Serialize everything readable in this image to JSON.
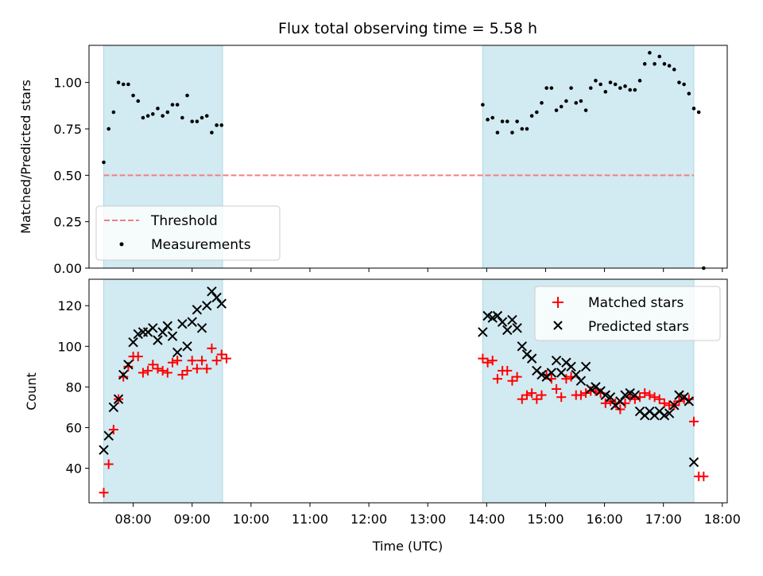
{
  "chart_data": [
    {
      "type": "scatter",
      "title": "Flux total observing time = 5.58 h",
      "ylabel": "Matched/Predicted stars",
      "xlim": [
        "07:15",
        "18:05"
      ],
      "ylim": [
        0,
        1.2
      ],
      "yticks": [
        "0.00",
        "0.25",
        "0.50",
        "0.75",
        "1.00"
      ],
      "grid": false,
      "legend_position": "lower-left",
      "shaded_intervals": [
        [
          "07:30",
          "09:31"
        ],
        [
          "13:56",
          "17:31"
        ]
      ],
      "shade_color": "#add8e6",
      "threshold": {
        "name": "Threshold",
        "value": 0.5,
        "x_range": [
          "07:30",
          "17:31"
        ],
        "color": "#f08080",
        "style": "dashed"
      },
      "series": [
        {
          "name": "Measurements",
          "marker": "dot",
          "color": "#000000",
          "points": [
            [
              "07:30",
              0.57
            ],
            [
              "07:35",
              0.75
            ],
            [
              "07:40",
              0.84
            ],
            [
              "07:45",
              1.0
            ],
            [
              "07:50",
              0.99
            ],
            [
              "07:55",
              0.99
            ],
            [
              "08:00",
              0.93
            ],
            [
              "08:05",
              0.9
            ],
            [
              "08:10",
              0.81
            ],
            [
              "08:15",
              0.82
            ],
            [
              "08:20",
              0.83
            ],
            [
              "08:25",
              0.86
            ],
            [
              "08:30",
              0.82
            ],
            [
              "08:35",
              0.84
            ],
            [
              "08:40",
              0.88
            ],
            [
              "08:45",
              0.88
            ],
            [
              "08:50",
              0.81
            ],
            [
              "08:55",
              0.93
            ],
            [
              "09:00",
              0.79
            ],
            [
              "09:05",
              0.79
            ],
            [
              "09:10",
              0.81
            ],
            [
              "09:15",
              0.82
            ],
            [
              "09:20",
              0.73
            ],
            [
              "09:25",
              0.77
            ],
            [
              "09:30",
              0.77
            ],
            [
              "13:56",
              0.88
            ],
            [
              "14:01",
              0.8
            ],
            [
              "14:06",
              0.81
            ],
            [
              "14:11",
              0.73
            ],
            [
              "14:16",
              0.79
            ],
            [
              "14:21",
              0.79
            ],
            [
              "14:26",
              0.73
            ],
            [
              "14:31",
              0.79
            ],
            [
              "14:36",
              0.75
            ],
            [
              "14:41",
              0.75
            ],
            [
              "14:46",
              0.82
            ],
            [
              "14:51",
              0.84
            ],
            [
              "14:56",
              0.89
            ],
            [
              "15:01",
              0.97
            ],
            [
              "15:06",
              0.97
            ],
            [
              "15:11",
              0.85
            ],
            [
              "15:16",
              0.87
            ],
            [
              "15:21",
              0.9
            ],
            [
              "15:26",
              0.97
            ],
            [
              "15:31",
              0.89
            ],
            [
              "15:36",
              0.9
            ],
            [
              "15:41",
              0.85
            ],
            [
              "15:46",
              0.97
            ],
            [
              "15:51",
              1.01
            ],
            [
              "15:56",
              0.99
            ],
            [
              "16:01",
              0.95
            ],
            [
              "16:06",
              1.0
            ],
            [
              "16:11",
              0.99
            ],
            [
              "16:16",
              0.97
            ],
            [
              "16:21",
              0.98
            ],
            [
              "16:26",
              0.96
            ],
            [
              "16:31",
              0.96
            ],
            [
              "16:36",
              1.01
            ],
            [
              "16:41",
              1.1
            ],
            [
              "16:46",
              1.16
            ],
            [
              "16:51",
              1.1
            ],
            [
              "16:56",
              1.14
            ],
            [
              "17:01",
              1.1
            ],
            [
              "17:06",
              1.09
            ],
            [
              "17:11",
              1.07
            ],
            [
              "17:16",
              1.0
            ],
            [
              "17:21",
              0.99
            ],
            [
              "17:26",
              0.94
            ],
            [
              "17:31",
              0.86
            ],
            [
              "17:36",
              0.84
            ],
            [
              "17:41",
              0.0
            ]
          ]
        }
      ]
    },
    {
      "type": "scatter",
      "xlabel": "Time (UTC)",
      "ylabel": "Count",
      "xlim": [
        "07:15",
        "18:05"
      ],
      "ylim": [
        23,
        133
      ],
      "xticks": [
        "08:00",
        "09:00",
        "10:00",
        "11:00",
        "12:00",
        "13:00",
        "14:00",
        "15:00",
        "16:00",
        "17:00",
        "18:00"
      ],
      "yticks": [
        40,
        60,
        80,
        100,
        120
      ],
      "grid": false,
      "legend_position": "upper-right",
      "shaded_intervals": [
        [
          "07:30",
          "09:31"
        ],
        [
          "13:56",
          "17:31"
        ]
      ],
      "shade_color": "#add8e6",
      "series": [
        {
          "name": "Matched stars",
          "marker": "plus",
          "color": "#ff0000",
          "points": [
            [
              "07:30",
              28
            ],
            [
              "07:35",
              42
            ],
            [
              "07:40",
              59
            ],
            [
              "07:45",
              74
            ],
            [
              "07:50",
              85
            ],
            [
              "07:55",
              90
            ],
            [
              "08:00",
              95
            ],
            [
              "08:05",
              95
            ],
            [
              "08:10",
              87
            ],
            [
              "08:15",
              88
            ],
            [
              "08:20",
              91
            ],
            [
              "08:25",
              89
            ],
            [
              "08:30",
              88
            ],
            [
              "08:35",
              87
            ],
            [
              "08:40",
              92
            ],
            [
              "08:45",
              93
            ],
            [
              "08:50",
              86
            ],
            [
              "08:55",
              88
            ],
            [
              "09:00",
              93
            ],
            [
              "09:05",
              89
            ],
            [
              "09:10",
              93
            ],
            [
              "09:15",
              89
            ],
            [
              "09:20",
              99
            ],
            [
              "09:25",
              93
            ],
            [
              "09:30",
              96
            ],
            [
              "09:35",
              94
            ],
            [
              "13:56",
              94
            ],
            [
              "14:01",
              92
            ],
            [
              "14:06",
              93
            ],
            [
              "14:11",
              84
            ],
            [
              "14:16",
              88
            ],
            [
              "14:21",
              88
            ],
            [
              "14:26",
              83
            ],
            [
              "14:31",
              85
            ],
            [
              "14:36",
              74
            ],
            [
              "14:41",
              76
            ],
            [
              "14:46",
              77
            ],
            [
              "14:51",
              74
            ],
            [
              "14:56",
              76
            ],
            [
              "15:01",
              86
            ],
            [
              "15:06",
              84
            ],
            [
              "15:11",
              79
            ],
            [
              "15:16",
              75
            ],
            [
              "15:21",
              84
            ],
            [
              "15:26",
              85
            ],
            [
              "15:31",
              76
            ],
            [
              "15:36",
              76
            ],
            [
              "15:41",
              77
            ],
            [
              "15:46",
              78
            ],
            [
              "15:51",
              78
            ],
            [
              "15:56",
              77
            ],
            [
              "16:01",
              72
            ],
            [
              "16:06",
              73
            ],
            [
              "16:11",
              72
            ],
            [
              "16:16",
              69
            ],
            [
              "16:21",
              72
            ],
            [
              "16:26",
              75
            ],
            [
              "16:31",
              74
            ],
            [
              "16:36",
              75
            ],
            [
              "16:41",
              77
            ],
            [
              "16:46",
              76
            ],
            [
              "16:51",
              75
            ],
            [
              "16:56",
              74
            ],
            [
              "17:01",
              72
            ],
            [
              "17:06",
              71
            ],
            [
              "17:11",
              71
            ],
            [
              "17:16",
              73
            ],
            [
              "17:21",
              74
            ],
            [
              "17:26",
              74
            ],
            [
              "17:31",
              63
            ],
            [
              "17:36",
              36
            ],
            [
              "17:41",
              36
            ]
          ]
        },
        {
          "name": "Predicted stars",
          "marker": "x",
          "color": "#000000",
          "points": [
            [
              "07:30",
              49
            ],
            [
              "07:35",
              56
            ],
            [
              "07:40",
              70
            ],
            [
              "07:45",
              74
            ],
            [
              "07:50",
              86
            ],
            [
              "07:55",
              91
            ],
            [
              "08:00",
              102
            ],
            [
              "08:05",
              106
            ],
            [
              "08:10",
              107
            ],
            [
              "08:15",
              107
            ],
            [
              "08:20",
              109
            ],
            [
              "08:25",
              103
            ],
            [
              "08:30",
              107
            ],
            [
              "08:35",
              110
            ],
            [
              "08:40",
              105
            ],
            [
              "08:45",
              97
            ],
            [
              "08:50",
              111
            ],
            [
              "08:55",
              100
            ],
            [
              "09:00",
              112
            ],
            [
              "09:05",
              118
            ],
            [
              "09:10",
              109
            ],
            [
              "09:15",
              120
            ],
            [
              "09:20",
              127
            ],
            [
              "09:25",
              124
            ],
            [
              "09:30",
              121
            ],
            [
              "13:56",
              107
            ],
            [
              "14:01",
              115
            ],
            [
              "14:06",
              114
            ],
            [
              "14:11",
              115
            ],
            [
              "14:16",
              112
            ],
            [
              "14:21",
              108
            ],
            [
              "14:26",
              113
            ],
            [
              "14:31",
              109
            ],
            [
              "14:36",
              100
            ],
            [
              "14:41",
              96
            ],
            [
              "14:46",
              94
            ],
            [
              "14:51",
              88
            ],
            [
              "14:56",
              86
            ],
            [
              "15:01",
              85
            ],
            [
              "15:06",
              87
            ],
            [
              "15:11",
              93
            ],
            [
              "15:16",
              87
            ],
            [
              "15:21",
              92
            ],
            [
              "15:26",
              90
            ],
            [
              "15:31",
              86
            ],
            [
              "15:36",
              83
            ],
            [
              "15:41",
              90
            ],
            [
              "15:46",
              79
            ],
            [
              "15:51",
              80
            ],
            [
              "15:56",
              78
            ],
            [
              "16:01",
              76
            ],
            [
              "16:06",
              75
            ],
            [
              "16:11",
              71
            ],
            [
              "16:16",
              73
            ],
            [
              "16:21",
              76
            ],
            [
              "16:26",
              77
            ],
            [
              "16:31",
              76
            ],
            [
              "16:36",
              68
            ],
            [
              "16:41",
              66
            ],
            [
              "16:46",
              68
            ],
            [
              "16:51",
              66
            ],
            [
              "16:56",
              68
            ],
            [
              "17:01",
              66
            ],
            [
              "17:06",
              67
            ],
            [
              "17:11",
              71
            ],
            [
              "17:16",
              76
            ],
            [
              "17:21",
              75
            ],
            [
              "17:26",
              73
            ],
            [
              "17:31",
              43
            ]
          ]
        }
      ]
    }
  ]
}
